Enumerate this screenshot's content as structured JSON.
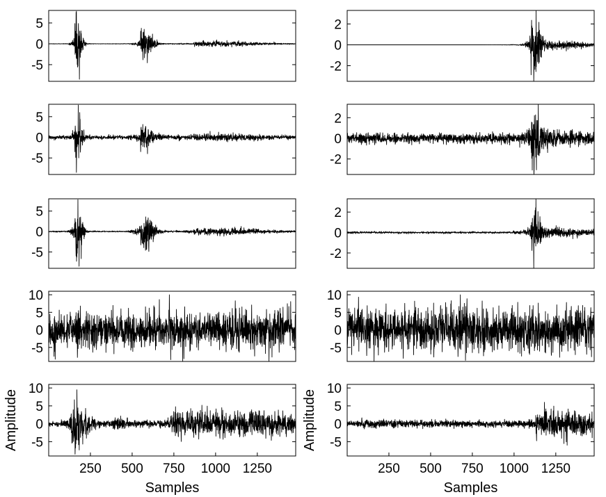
{
  "chart_data": [
    {
      "type": "line",
      "row": 1,
      "col": 1,
      "xlim": [
        0,
        1480
      ],
      "ylim": [
        -9,
        8
      ],
      "yticks": [
        -5,
        0,
        5
      ],
      "xticks": [],
      "xlabel": "",
      "ylabel": "",
      "series": [
        {
          "peak_y": [
            -8.5,
            7.8
          ],
          "bursts": [
            {
              "center": 170,
              "width": 22,
              "amp": 7.8
            },
            {
              "center": 575,
              "width": 40,
              "amp": 3.5
            },
            {
              "center": 1000,
              "width": 220,
              "amp": 0.6
            }
          ],
          "noise": 0.05,
          "seed": 11
        }
      ]
    },
    {
      "type": "line",
      "row": 1,
      "col": 2,
      "xlim": [
        0,
        1480
      ],
      "ylim": [
        -3.5,
        3.3
      ],
      "yticks": [
        -2,
        0,
        2
      ],
      "xticks": [],
      "xlabel": "",
      "ylabel": "",
      "series": [
        {
          "peak_y": [
            -3.5,
            3.3
          ],
          "bursts": [
            {
              "center": 1120,
              "width": 30,
              "amp": 3.3
            },
            {
              "center": 1250,
              "width": 150,
              "amp": 0.5
            }
          ],
          "noise": 0.0,
          "seed": 21
        }
      ]
    },
    {
      "type": "line",
      "row": 2,
      "col": 1,
      "xlim": [
        0,
        1480
      ],
      "ylim": [
        -9,
        8
      ],
      "yticks": [
        -5,
        0,
        5
      ],
      "xticks": [],
      "xlabel": "",
      "ylabel": "",
      "series": [
        {
          "peak_y": [
            -8.5,
            7.8
          ],
          "bursts": [
            {
              "center": 170,
              "width": 22,
              "amp": 7.8
            },
            {
              "center": 575,
              "width": 40,
              "amp": 3.5
            },
            {
              "center": 1000,
              "width": 220,
              "amp": 0.6
            }
          ],
          "noise": 0.6,
          "seed": 12
        }
      ]
    },
    {
      "type": "line",
      "row": 2,
      "col": 2,
      "xlim": [
        0,
        1480
      ],
      "ylim": [
        -3.5,
        3.3
      ],
      "yticks": [
        -2,
        0,
        2
      ],
      "xticks": [],
      "xlabel": "",
      "ylabel": "",
      "series": [
        {
          "peak_y": [
            -3.5,
            3.3
          ],
          "bursts": [
            {
              "center": 1120,
              "width": 30,
              "amp": 3.3
            },
            {
              "center": 1250,
              "width": 150,
              "amp": 0.5
            }
          ],
          "noise": 0.6,
          "seed": 22
        }
      ]
    },
    {
      "type": "line",
      "row": 3,
      "col": 1,
      "xlim": [
        0,
        1480
      ],
      "ylim": [
        -9,
        8
      ],
      "yticks": [
        -5,
        0,
        5
      ],
      "xticks": [],
      "xlabel": "",
      "ylabel": "",
      "series": [
        {
          "peak_y": [
            -8.5,
            7.8
          ],
          "bursts": [
            {
              "center": 170,
              "width": 22,
              "amp": 7.8
            },
            {
              "center": 575,
              "width": 40,
              "amp": 3.5
            },
            {
              "center": 1000,
              "width": 220,
              "amp": 0.6
            }
          ],
          "noise": 0.12,
          "seed": 13
        }
      ]
    },
    {
      "type": "line",
      "row": 3,
      "col": 2,
      "xlim": [
        0,
        1480
      ],
      "ylim": [
        -3.5,
        3.3
      ],
      "yticks": [
        -2,
        0,
        2
      ],
      "xticks": [],
      "xlabel": "",
      "ylabel": "",
      "series": [
        {
          "peak_y": [
            -3.5,
            3.3
          ],
          "bursts": [
            {
              "center": 1120,
              "width": 30,
              "amp": 3.3
            },
            {
              "center": 1250,
              "width": 150,
              "amp": 0.5
            }
          ],
          "noise": 0.12,
          "seed": 23
        }
      ]
    },
    {
      "type": "line",
      "row": 4,
      "col": 1,
      "xlim": [
        0,
        1480
      ],
      "ylim": [
        -9,
        11
      ],
      "yticks": [
        -5,
        0,
        5,
        10
      ],
      "xticks": [],
      "xlabel": "",
      "ylabel": "",
      "series": [
        {
          "peak_y": [
            -9,
            10
          ],
          "bursts": [],
          "noise": 3.4,
          "seed": 14
        }
      ]
    },
    {
      "type": "line",
      "row": 4,
      "col": 2,
      "xlim": [
        0,
        1480
      ],
      "ylim": [
        -9,
        11
      ],
      "yticks": [
        -5,
        0,
        5,
        10
      ],
      "xticks": [],
      "xlabel": "",
      "ylabel": "",
      "series": [
        {
          "peak_y": [
            -9,
            10
          ],
          "bursts": [],
          "noise": 3.4,
          "seed": 24
        }
      ]
    },
    {
      "type": "line",
      "row": 5,
      "col": 1,
      "xlim": [
        0,
        1480
      ],
      "ylim": [
        -9,
        11
      ],
      "yticks": [
        -5,
        0,
        5,
        10
      ],
      "xticks": [
        250,
        500,
        750,
        1000,
        1250
      ],
      "xlabel": "Samples",
      "ylabel": "Amplitude",
      "series": [
        {
          "peak_y": [
            -8.5,
            9.5
          ],
          "bursts": [
            {
              "center": 160,
              "width": 60,
              "amp": 4.5
            },
            {
              "center": 400,
              "width": 40,
              "amp": 0.8
            },
            {
              "center": 1000,
              "width": 450,
              "amp": 2.8
            }
          ],
          "noise": 0.3,
          "seed": 15
        }
      ]
    },
    {
      "type": "line",
      "row": 5,
      "col": 2,
      "xlim": [
        0,
        1480
      ],
      "ylim": [
        -9,
        11
      ],
      "yticks": [
        -5,
        0,
        5,
        10
      ],
      "xticks": [
        250,
        500,
        750,
        1000,
        1250
      ],
      "xlabel": "Samples",
      "ylabel": "Amplitude",
      "series": [
        {
          "peak_y": [
            -6,
            6
          ],
          "bursts": [
            {
              "center": 300,
              "width": 400,
              "amp": 0.5
            },
            {
              "center": 1250,
              "width": 200,
              "amp": 2.5
            }
          ],
          "noise": 0.35,
          "seed": 25
        }
      ]
    }
  ]
}
